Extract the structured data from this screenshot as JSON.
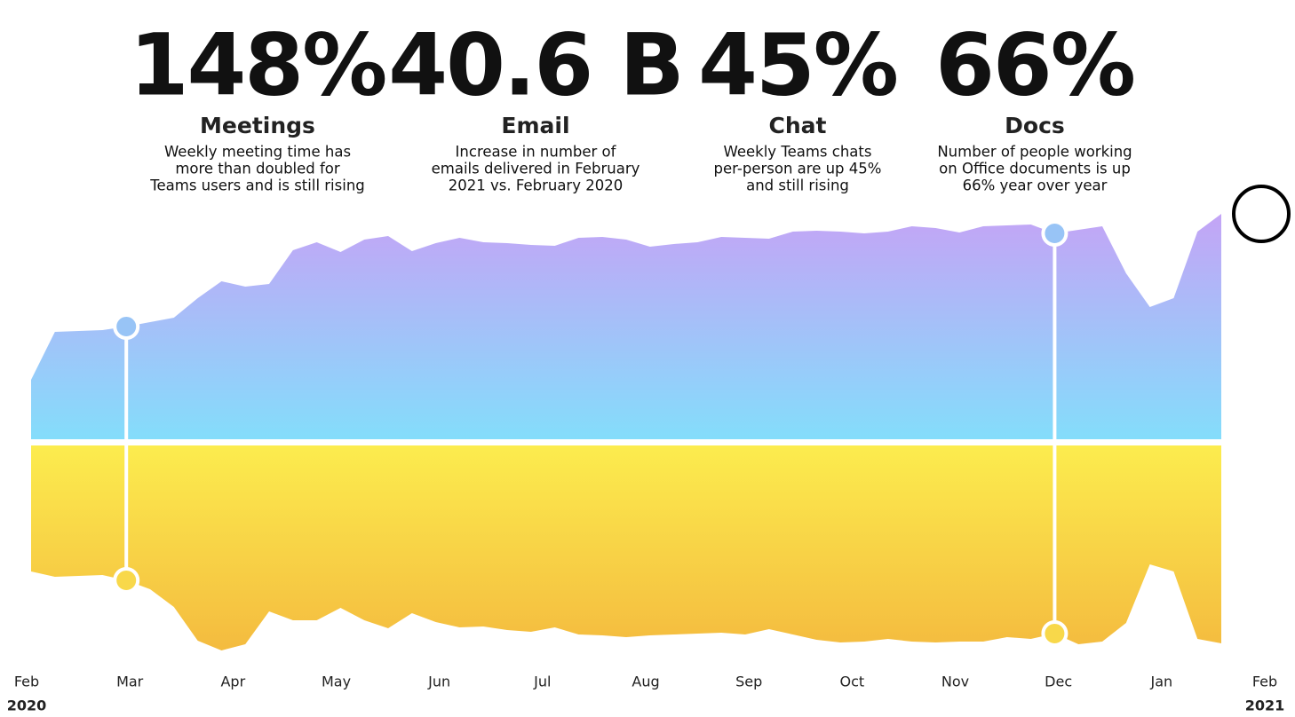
{
  "chart_data": {
    "type": "mirrored-area",
    "stats": [
      {
        "value": "148%",
        "label": "Meetings",
        "description": [
          "Weekly meeting time has",
          "more than doubled for",
          "Teams users and is still rising"
        ]
      },
      {
        "value": "40.6 B",
        "label": "Email",
        "description": [
          "Increase in number of",
          "emails delivered in February",
          "2021 vs. February 2020"
        ]
      },
      {
        "value": "45%",
        "label": "Chat",
        "description": [
          "Weekly Teams chats",
          "per-person are up 45%",
          "and still rising"
        ]
      },
      {
        "value": "66%",
        "label": "Docs",
        "description": [
          "Number of people working",
          "on Office documents is up",
          "66% year over year"
        ]
      }
    ],
    "axis_labels": [
      {
        "month": "Feb",
        "year": "2020"
      },
      {
        "month": "Mar"
      },
      {
        "month": "Apr"
      },
      {
        "month": "May"
      },
      {
        "month": "Jun"
      },
      {
        "month": "Jul"
      },
      {
        "month": "Aug"
      },
      {
        "month": "Sep"
      },
      {
        "month": "Oct"
      },
      {
        "month": "Nov"
      },
      {
        "month": "Dec"
      },
      {
        "month": "Jan"
      },
      {
        "month": "Feb",
        "year": "2021"
      }
    ],
    "series": [
      {
        "color_top": "#c4a4f6",
        "color_bottom": "#84ddfb",
        "direction": "up",
        "values": [
          67,
          121,
          122,
          123,
          127,
          132,
          137,
          159,
          178,
          172,
          175,
          213,
          222,
          211,
          225,
          229,
          212,
          221,
          227,
          222,
          221,
          219,
          218,
          227,
          228,
          225,
          217,
          220,
          222,
          228,
          227,
          226,
          234,
          235,
          234,
          232,
          234,
          240,
          238,
          233,
          240,
          241,
          242,
          232,
          236,
          240,
          187,
          149,
          159,
          234,
          254
        ]
      },
      {
        "color_top": "#fcec4e",
        "color_bottom": "#f4bb3f",
        "direction": "down",
        "values": [
          142,
          148,
          147,
          146,
          152,
          162,
          182,
          220,
          231,
          224,
          187,
          197,
          197,
          183,
          197,
          206,
          189,
          199,
          205,
          204,
          208,
          210,
          205,
          213,
          214,
          216,
          214,
          213,
          212,
          211,
          213,
          207,
          213,
          219,
          222,
          221,
          218,
          221,
          222,
          221,
          221,
          216,
          218,
          212,
          224,
          221,
          200,
          134,
          142,
          218,
          223
        ]
      }
    ],
    "highlight_points": [
      4,
      43
    ]
  }
}
